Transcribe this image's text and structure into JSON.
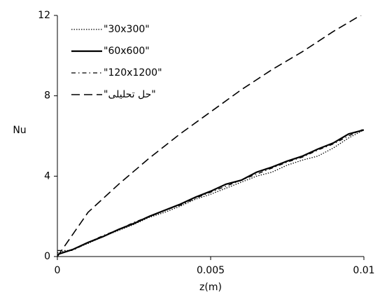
{
  "chart_data": {
    "type": "line",
    "x_label": "z(m)",
    "y_label": "Nu",
    "xlim": [
      0,
      0.01
    ],
    "xticks": [
      0,
      0.005,
      0.01
    ],
    "ylim": [
      0,
      12
    ],
    "yticks": [
      0,
      4,
      8,
      12
    ],
    "grid": false,
    "legend": "upper left",
    "series": [
      {
        "name": "\"30x300\"",
        "color": "#000000",
        "dash": "dotted",
        "x": [
          0,
          0.0005,
          0.001,
          0.0015,
          0.002,
          0.0025,
          0.003,
          0.0035,
          0.004,
          0.0045,
          0.005,
          0.0055,
          0.006,
          0.0065,
          0.007,
          0.0075,
          0.008,
          0.0085,
          0.009,
          0.0095,
          0.01
        ],
        "values": [
          0.2,
          0.35,
          0.65,
          1.0,
          1.3,
          1.6,
          1.95,
          2.2,
          2.5,
          2.85,
          3.1,
          3.4,
          3.7,
          4.0,
          4.2,
          4.55,
          4.8,
          5.0,
          5.4,
          5.9,
          6.3
        ]
      },
      {
        "name": "\"60x600\"",
        "color": "#000000",
        "dash": "solid",
        "x": [
          0,
          0.0005,
          0.001,
          0.0015,
          0.002,
          0.0025,
          0.003,
          0.0035,
          0.004,
          0.0045,
          0.005,
          0.0055,
          0.006,
          0.0065,
          0.007,
          0.0075,
          0.008,
          0.0085,
          0.009,
          0.0095,
          0.01
        ],
        "values": [
          0.1,
          0.35,
          0.7,
          1.0,
          1.35,
          1.65,
          2.0,
          2.3,
          2.6,
          2.95,
          3.25,
          3.6,
          3.8,
          4.2,
          4.45,
          4.75,
          5.0,
          5.35,
          5.65,
          6.1,
          6.3
        ]
      },
      {
        "name": "\"120x1200\"",
        "color": "#000000",
        "dash": "dash-dot",
        "x": [
          0,
          0.0005,
          0.001,
          0.0015,
          0.002,
          0.0025,
          0.003,
          0.0035,
          0.004,
          0.0045,
          0.005,
          0.0055,
          0.006,
          0.0065,
          0.007,
          0.0075,
          0.008,
          0.0085,
          0.009,
          0.0095,
          0.01
        ],
        "values": [
          0.3,
          0.3,
          0.7,
          1.05,
          1.35,
          1.7,
          2.0,
          2.3,
          2.55,
          2.9,
          3.2,
          3.5,
          3.8,
          4.1,
          4.4,
          4.7,
          4.95,
          5.3,
          5.6,
          6.0,
          6.35
        ]
      },
      {
        "name": "\"حل تحلیلی\"",
        "color": "#000000",
        "dash": "dashed",
        "x": [
          0,
          0.001,
          0.002,
          0.003,
          0.004,
          0.005,
          0.006,
          0.007,
          0.008,
          0.009,
          0.01
        ],
        "values": [
          0,
          2.2,
          3.6,
          4.9,
          6.1,
          7.2,
          8.3,
          9.3,
          10.2,
          11.2,
          12.1
        ]
      }
    ]
  }
}
